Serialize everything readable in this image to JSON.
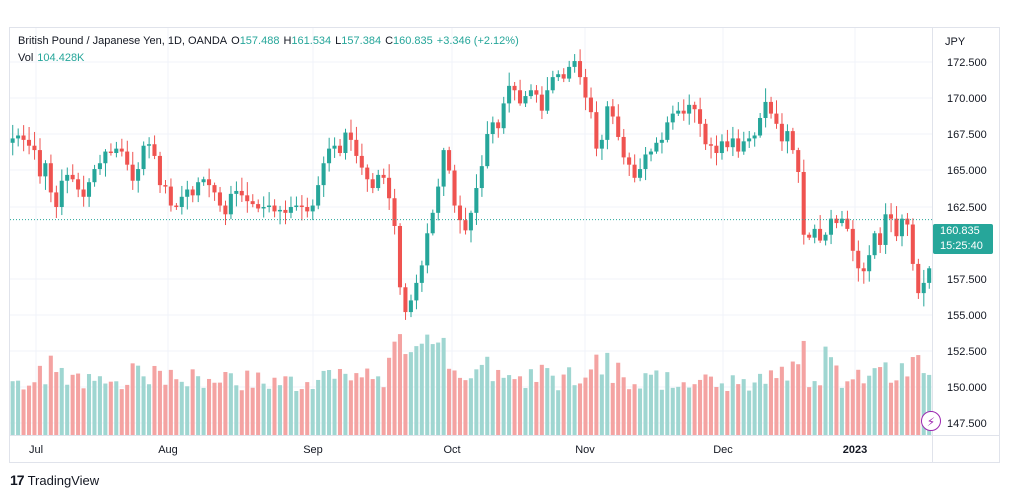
{
  "header": {
    "symbol": "British Pound / Japanese Yen, 1D, OANDA",
    "open_label": "O",
    "open": "157.488",
    "high_label": "H",
    "high": "161.534",
    "low_label": "L",
    "low": "157.384",
    "close_label": "C",
    "close": "160.835",
    "change": "+3.346 (+2.12%)",
    "vol_label": "Vol",
    "vol": "104.428K"
  },
  "price_tag": {
    "price": "160.835",
    "countdown": "15:25:40"
  },
  "brand": {
    "name": "TradingView",
    "logo": "tradingview-logo-icon"
  },
  "colors": {
    "up": "#26a69a",
    "down": "#ef5350",
    "up_vol": "#9fd6d1",
    "down_vol": "#f4a3a2",
    "grid": "#f0f3fa"
  },
  "chart_data": {
    "type": "candlestick",
    "currency": "JPY",
    "x_ticks": [
      "Jul",
      "Aug",
      "Sep",
      "Oct",
      "Nov",
      "Dec",
      "2023"
    ],
    "y_ticks": [
      "172.500",
      "170.000",
      "167.500",
      "165.000",
      "162.500",
      "157.500",
      "155.000",
      "152.500",
      "150.000",
      "147.500"
    ],
    "ylim": [
      146.9,
      174.0
    ],
    "last_price": 160.835,
    "closes": [
      166.4,
      166.6,
      166.3,
      165.9,
      165.6,
      163.8,
      164.7,
      162.7,
      161.7,
      163.5,
      163.9,
      163.6,
      162.9,
      162.4,
      163.4,
      164.3,
      164.7,
      165.5,
      165.4,
      165.7,
      165.5,
      164.6,
      163.5,
      164.3,
      165.9,
      166.0,
      165.2,
      163.2,
      163.1,
      161.8,
      161.7,
      162.4,
      162.9,
      162.5,
      163.4,
      163.6,
      163.2,
      162.7,
      161.8,
      161.2,
      162.6,
      162.8,
      162.5,
      162.1,
      161.9,
      161.6,
      161.7,
      161.8,
      161.4,
      161.5,
      161.3,
      161.7,
      161.8,
      161.7,
      161.4,
      161.8,
      163.2,
      164.7,
      165.7,
      165.9,
      165.4,
      166.8,
      166.3,
      165.2,
      164.4,
      163.6,
      163.0,
      163.9,
      163.7,
      162.3,
      160.4,
      156.2,
      154.5,
      155.3,
      156.5,
      157.7,
      159.9,
      161.3,
      163.1,
      165.6,
      164.2,
      161.8,
      160.8,
      160.1,
      161.3,
      163.0,
      164.5,
      166.7,
      167.5,
      167.1,
      168.8,
      170.0,
      169.7,
      168.8,
      169.3,
      169.7,
      169.4,
      168.3,
      169.7,
      170.6,
      170.8,
      170.5,
      171.3,
      171.7,
      170.6,
      169.2,
      168.2,
      165.7,
      166.3,
      168.6,
      167.9,
      166.5,
      165.1,
      164.6,
      163.7,
      164.3,
      165.3,
      165.5,
      166.1,
      166.3,
      167.5,
      168.1,
      168.3,
      168.1,
      168.7,
      168.4,
      167.4,
      166.0,
      165.9,
      165.4,
      166.2,
      165.8,
      166.4,
      165.5,
      166.2,
      166.4,
      166.6,
      167.8,
      168.9,
      168.1,
      167.4,
      166.2,
      166.9,
      165.6,
      164.1,
      159.8,
      159.6,
      160.2,
      159.4,
      159.8,
      160.9,
      160.6,
      160.9,
      160.2,
      158.7,
      157.5,
      157.3,
      158.4,
      159.9,
      159.1,
      161.2,
      160.9,
      159.7,
      160.9,
      160.5,
      157.8,
      155.8,
      156.5,
      157.5
    ]
  }
}
